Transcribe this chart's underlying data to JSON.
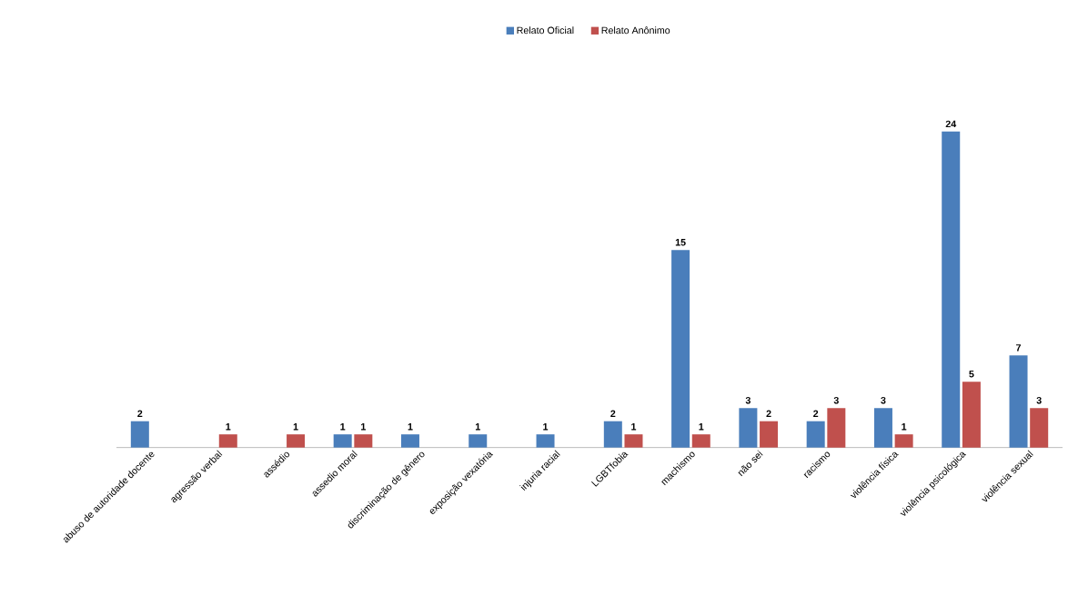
{
  "chart_data": {
    "type": "bar",
    "categories": [
      "abuso de autoridade docente",
      "agressão verbal",
      "assédio",
      "assedio moral",
      "discriminação  de gênero",
      "exposição vexatória",
      "injuria racial",
      "LGBTfobia",
      "machismo",
      "não sei",
      "racismo",
      "violência física",
      "violência psicológica",
      "violência sexual"
    ],
    "series": [
      {
        "name": "Relato Oficial",
        "color": "#4a7ebb",
        "values": [
          2,
          null,
          null,
          1,
          1,
          1,
          1,
          2,
          15,
          3,
          2,
          3,
          24,
          7
        ]
      },
      {
        "name": "Relato Anônimo",
        "color": "#c0504d",
        "values": [
          null,
          1,
          1,
          1,
          null,
          null,
          null,
          1,
          1,
          2,
          3,
          1,
          5,
          3
        ]
      }
    ],
    "data_labels": true,
    "legend": "top"
  }
}
